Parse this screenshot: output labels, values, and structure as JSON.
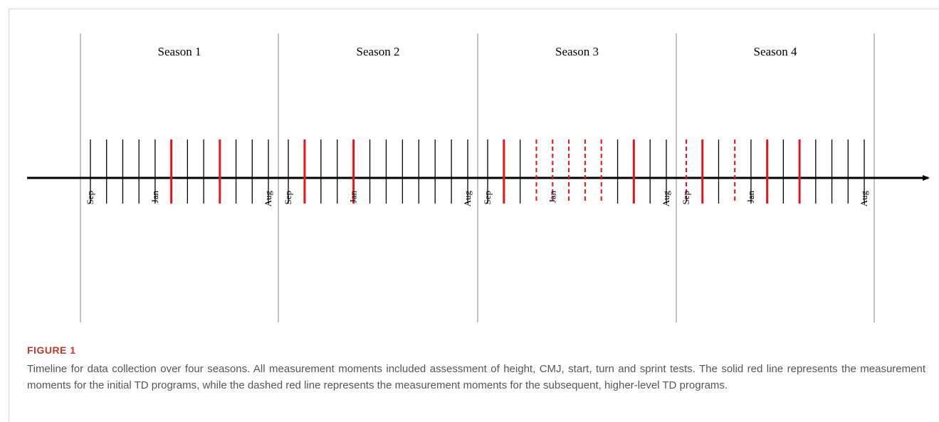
{
  "timeline": {
    "months": [
      "Sep",
      null,
      null,
      null,
      "Jan",
      null,
      null,
      null,
      null,
      null,
      null,
      "Aug"
    ],
    "seasons": [
      {
        "label": "Season 1",
        "moments": [
          "none",
          "none",
          "none",
          "none",
          "none",
          "solid",
          "none",
          "none",
          "solid",
          "none",
          "none",
          "none"
        ]
      },
      {
        "label": "Season 2",
        "moments": [
          "none",
          "solid",
          "none",
          "none",
          "solid",
          "none",
          "none",
          "none",
          "none",
          "none",
          "none",
          "none"
        ]
      },
      {
        "label": "Season 3",
        "moments": [
          "none",
          "solid",
          "none",
          "dashed",
          "dashed",
          "dashed",
          "dashed",
          "dashed",
          "none",
          "solid",
          "none",
          "none"
        ]
      },
      {
        "label": "Season 4",
        "moments": [
          "dashed",
          "solid",
          "none",
          "dashed",
          "none",
          "solid",
          "none",
          "solid",
          "none",
          "none",
          "none",
          "none"
        ]
      }
    ]
  },
  "caption": {
    "label": "FIGURE 1",
    "text": "Timeline for data collection over four seasons. All measurement moments included assessment of height, CMJ, start, turn and sprint tests. The solid red line represents the measurement moments for the initial TD programs, while the dashed red line represents the measurement moments for the subsequent, higher-level TD programs."
  }
}
